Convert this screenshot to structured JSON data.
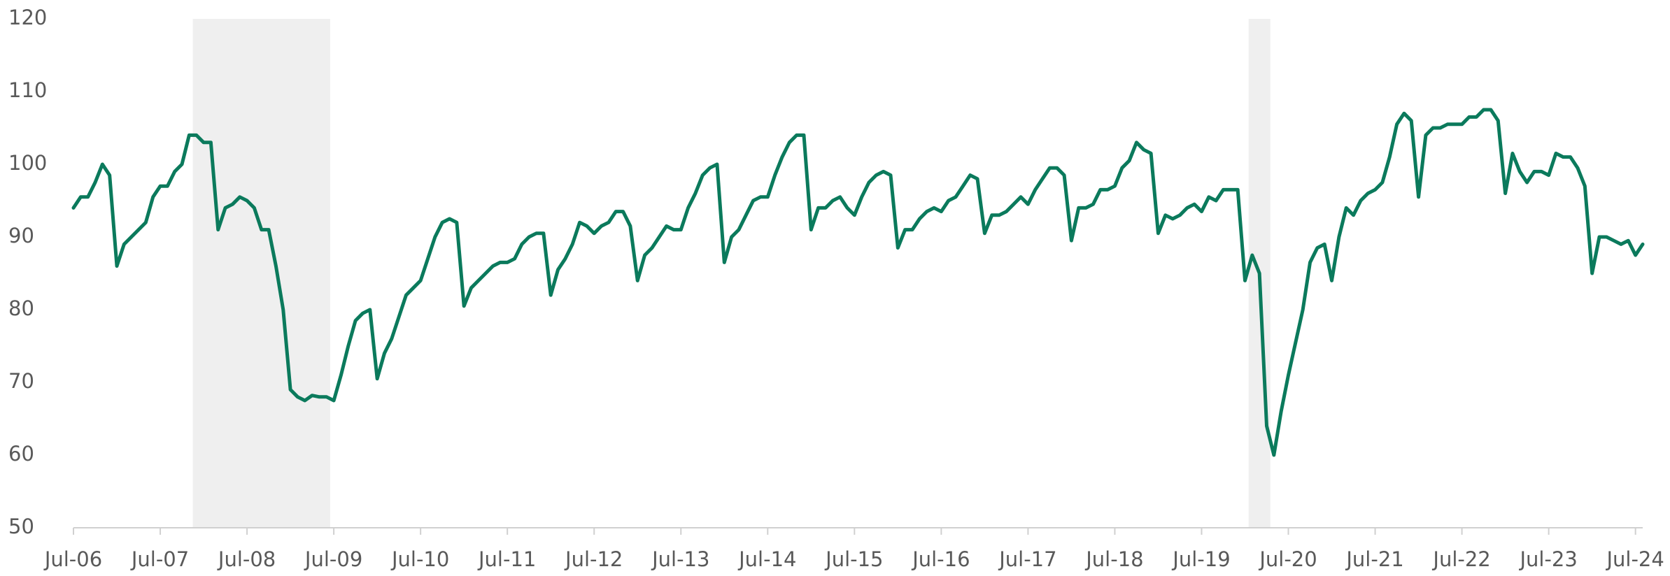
{
  "chart_data": {
    "type": "line",
    "x": [
      "2006-07",
      "2006-08",
      "2006-09",
      "2006-10",
      "2006-11",
      "2006-12",
      "2007-01",
      "2007-02",
      "2007-03",
      "2007-04",
      "2007-05",
      "2007-06",
      "2007-07",
      "2007-08",
      "2007-09",
      "2007-10",
      "2007-11",
      "2007-12",
      "2008-01",
      "2008-02",
      "2008-03",
      "2008-04",
      "2008-05",
      "2008-06",
      "2008-07",
      "2008-08",
      "2008-09",
      "2008-10",
      "2008-11",
      "2008-12",
      "2009-01",
      "2009-02",
      "2009-03",
      "2009-04",
      "2009-05",
      "2009-06",
      "2009-07",
      "2009-08",
      "2009-09",
      "2009-10",
      "2009-11",
      "2009-12",
      "2010-01",
      "2010-02",
      "2010-03",
      "2010-04",
      "2010-05",
      "2010-06",
      "2010-07",
      "2010-08",
      "2010-09",
      "2010-10",
      "2010-11",
      "2010-12",
      "2011-01",
      "2011-02",
      "2011-03",
      "2011-04",
      "2011-05",
      "2011-06",
      "2011-07",
      "2011-08",
      "2011-09",
      "2011-10",
      "2011-11",
      "2011-12",
      "2012-01",
      "2012-02",
      "2012-03",
      "2012-04",
      "2012-05",
      "2012-06",
      "2012-07",
      "2012-08",
      "2012-09",
      "2012-10",
      "2012-11",
      "2012-12",
      "2013-01",
      "2013-02",
      "2013-03",
      "2013-04",
      "2013-05",
      "2013-06",
      "2013-07",
      "2013-08",
      "2013-09",
      "2013-10",
      "2013-11",
      "2013-12",
      "2014-01",
      "2014-02",
      "2014-03",
      "2014-04",
      "2014-05",
      "2014-06",
      "2014-07",
      "2014-08",
      "2014-09",
      "2014-10",
      "2014-11",
      "2014-12",
      "2015-01",
      "2015-02",
      "2015-03",
      "2015-04",
      "2015-05",
      "2015-06",
      "2015-07",
      "2015-08",
      "2015-09",
      "2015-10",
      "2015-11",
      "2015-12",
      "2016-01",
      "2016-02",
      "2016-03",
      "2016-04",
      "2016-05",
      "2016-06",
      "2016-07",
      "2016-08",
      "2016-09",
      "2016-10",
      "2016-11",
      "2016-12",
      "2017-01",
      "2017-02",
      "2017-03",
      "2017-04",
      "2017-05",
      "2017-06",
      "2017-07",
      "2017-08",
      "2017-09",
      "2017-10",
      "2017-11",
      "2017-12",
      "2018-01",
      "2018-02",
      "2018-03",
      "2018-04",
      "2018-05",
      "2018-06",
      "2018-07",
      "2018-08",
      "2018-09",
      "2018-10",
      "2018-11",
      "2018-12",
      "2019-01",
      "2019-02",
      "2019-03",
      "2019-04",
      "2019-05",
      "2019-06",
      "2019-07",
      "2019-08",
      "2019-09",
      "2019-10",
      "2019-11",
      "2019-12",
      "2020-01",
      "2020-02",
      "2020-03",
      "2020-04",
      "2020-05",
      "2020-06",
      "2020-07",
      "2020-08",
      "2020-09",
      "2020-10",
      "2020-11",
      "2020-12",
      "2021-01",
      "2021-02",
      "2021-03",
      "2021-04",
      "2021-05",
      "2021-06",
      "2021-07",
      "2021-08",
      "2021-09",
      "2021-10",
      "2021-11",
      "2021-12",
      "2022-01",
      "2022-02",
      "2022-03",
      "2022-04",
      "2022-05",
      "2022-06",
      "2022-07",
      "2022-08",
      "2022-09",
      "2022-10",
      "2022-11",
      "2022-12",
      "2023-01",
      "2023-02",
      "2023-03",
      "2023-04",
      "2023-05",
      "2023-06",
      "2023-07",
      "2023-08",
      "2023-09",
      "2023-10",
      "2023-11",
      "2023-12",
      "2024-01",
      "2024-02",
      "2024-03",
      "2024-04",
      "2024-05",
      "2024-06",
      "2024-07",
      "2024-08"
    ],
    "series": [
      {
        "color": "#0b7a5c",
        "values": [
          94,
          95.5,
          95.5,
          97.5,
          100,
          98.5,
          86,
          89,
          90,
          91,
          92,
          95.5,
          97,
          97,
          99,
          100,
          104,
          104,
          103,
          103,
          91,
          94,
          94.5,
          95.5,
          95,
          94,
          91,
          91,
          86,
          80,
          69,
          68,
          67.5,
          68.2,
          68,
          68,
          67.5,
          71,
          75,
          78.5,
          79.5,
          80,
          70.5,
          74,
          76,
          79,
          82,
          83,
          84,
          87,
          90,
          92,
          92.5,
          92,
          80.5,
          83,
          84,
          85,
          86,
          86.5,
          86.5,
          87,
          89,
          90,
          90.5,
          90.5,
          82,
          85.5,
          87,
          89,
          92,
          91.5,
          90.5,
          91.5,
          92,
          93.5,
          93.5,
          91.5,
          84,
          87.5,
          88.5,
          90,
          91.5,
          91,
          91,
          94,
          96,
          98.5,
          99.5,
          100,
          86.5,
          90,
          91,
          93,
          95,
          95.5,
          95.5,
          98.5,
          101,
          103,
          104,
          104,
          91,
          94,
          94,
          95,
          95.5,
          94,
          93,
          95.5,
          97.5,
          98.5,
          99,
          98.5,
          88.5,
          91,
          91,
          92.5,
          93.5,
          94,
          93.5,
          95,
          95.5,
          97,
          98.5,
          98,
          90.5,
          93,
          93,
          93.5,
          94.5,
          95.5,
          94.5,
          96.5,
          98,
          99.5,
          99.5,
          98.5,
          89.5,
          94,
          94,
          94.5,
          96.5,
          96.5,
          97,
          99.5,
          100.5,
          103,
          102,
          101.5,
          90.5,
          93,
          92.5,
          93,
          94,
          94.5,
          93.5,
          95.5,
          95,
          96.5,
          96.5,
          96.5,
          84,
          87.5,
          85,
          64,
          60,
          66,
          71,
          75.5,
          80,
          86.5,
          88.5,
          89,
          84,
          90,
          94,
          93,
          95,
          96,
          96.5,
          97.5,
          101,
          105.5,
          107,
          106,
          95.5,
          104,
          105,
          105,
          105.5,
          105.5,
          105.5,
          106.5,
          106.5,
          107.5,
          107.5,
          106,
          96,
          101.5,
          99,
          97.5,
          99,
          99,
          98.5,
          101.5,
          101,
          101,
          99.5,
          97,
          85,
          90,
          90,
          89.5,
          89,
          89.5,
          87.5,
          89
        ]
      }
    ],
    "shaded": [
      {
        "start": "2007-12",
        "end": "2009-06",
        "color": "#efefef"
      },
      {
        "start": "2020-02",
        "end": "2020-04",
        "color": "#efefef"
      }
    ],
    "xlim": [
      "2006-07",
      "2024-08"
    ],
    "xticks": [
      {
        "value": "2006-07",
        "label": "Jul-06"
      },
      {
        "value": "2007-07",
        "label": "Jul-07"
      },
      {
        "value": "2008-07",
        "label": "Jul-08"
      },
      {
        "value": "2009-07",
        "label": "Jul-09"
      },
      {
        "value": "2010-07",
        "label": "Jul-10"
      },
      {
        "value": "2011-07",
        "label": "Jul-11"
      },
      {
        "value": "2012-07",
        "label": "Jul-12"
      },
      {
        "value": "2013-07",
        "label": "Jul-13"
      },
      {
        "value": "2014-07",
        "label": "Jul-14"
      },
      {
        "value": "2015-07",
        "label": "Jul-15"
      },
      {
        "value": "2016-07",
        "label": "Jul-16"
      },
      {
        "value": "2017-07",
        "label": "Jul-17"
      },
      {
        "value": "2018-07",
        "label": "Jul-18"
      },
      {
        "value": "2019-07",
        "label": "Jul-19"
      },
      {
        "value": "2020-07",
        "label": "Jul-20"
      },
      {
        "value": "2021-07",
        "label": "Jul-21"
      },
      {
        "value": "2022-07",
        "label": "Jul-22"
      },
      {
        "value": "2023-07",
        "label": "Jul-23"
      },
      {
        "value": "2024-07",
        "label": "Jul-24"
      }
    ],
    "ylim": [
      50,
      120
    ],
    "yticks": [
      50,
      60,
      70,
      80,
      90,
      100,
      110,
      120
    ],
    "grid": false
  }
}
